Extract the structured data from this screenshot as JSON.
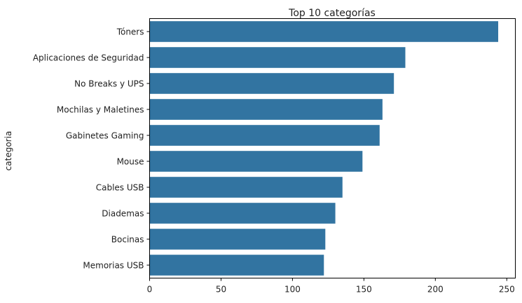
{
  "chart_data": {
    "type": "bar",
    "orientation": "horizontal",
    "title": "Top 10 categorías",
    "xlabel": "",
    "ylabel": "categoria",
    "categories": [
      "Tóners",
      "Aplicaciones de Seguridad",
      "No Breaks y UPS",
      "Mochilas y Maletines",
      "Gabinetes Gaming",
      "Mouse",
      "Cables USB",
      "Diademas",
      "Bocinas",
      "Memorias USB"
    ],
    "values": [
      244,
      179,
      171,
      163,
      161,
      149,
      135,
      130,
      123,
      122
    ],
    "xlim": [
      0,
      256
    ],
    "xticks": [
      0,
      50,
      100,
      150,
      200,
      250
    ],
    "grid": false,
    "legend": "none",
    "bar_color": "#3274a1"
  }
}
